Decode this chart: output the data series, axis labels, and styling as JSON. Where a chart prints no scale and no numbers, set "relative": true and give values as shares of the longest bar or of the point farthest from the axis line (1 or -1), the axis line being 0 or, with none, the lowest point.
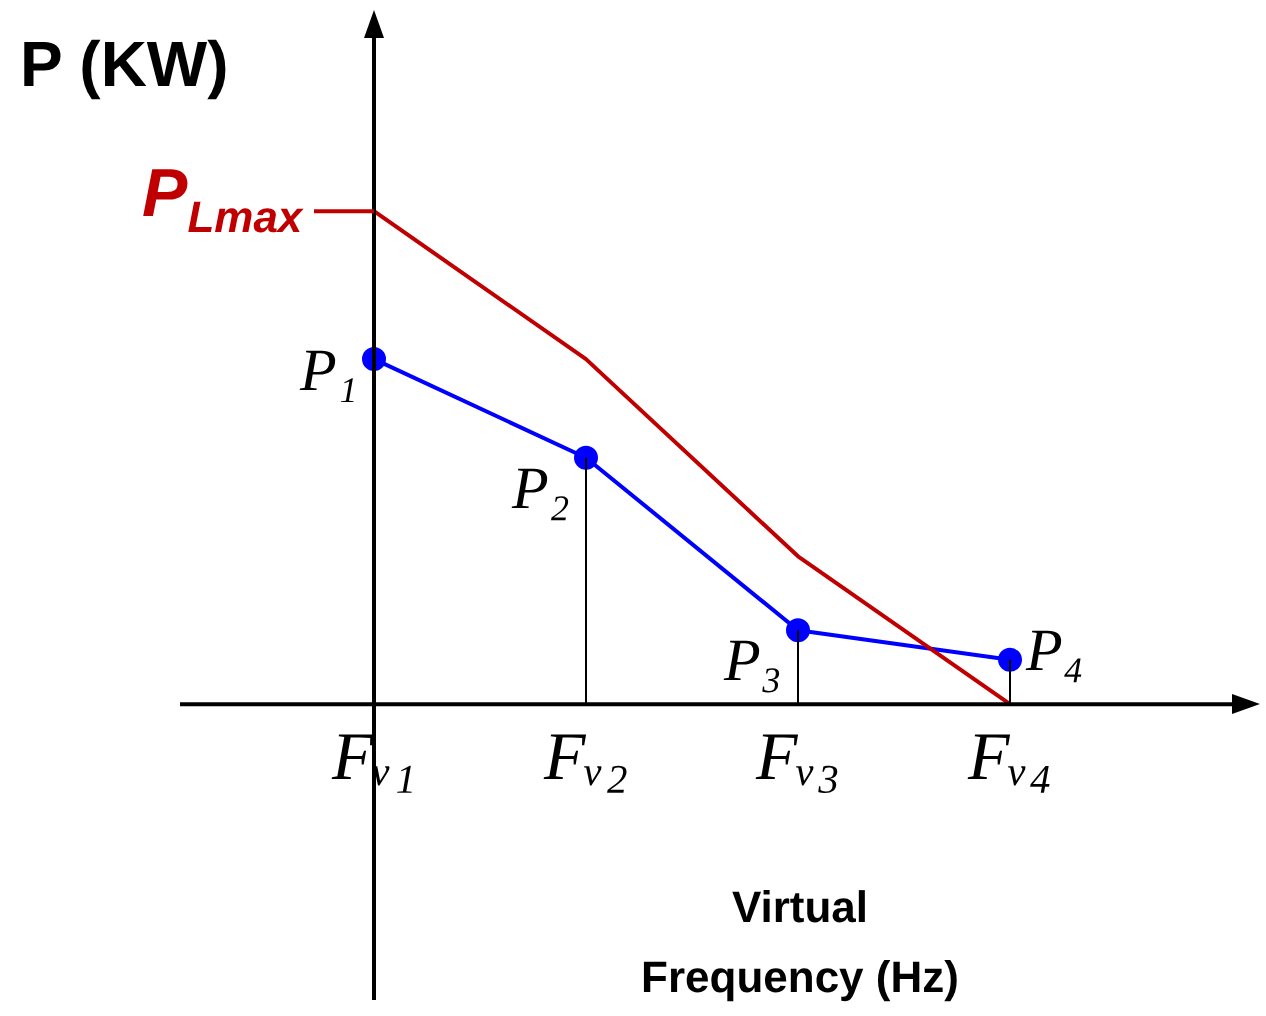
{
  "chart_data": {
    "type": "line",
    "relative": true,
    "ylabel": "P (KW)",
    "xlabel": "Virtual Frequency (Hz)",
    "categories": [
      "Fᵥ₁",
      "Fᵥ₂",
      "Fᵥ₃",
      "Fᵥ₄"
    ],
    "grid": "x",
    "legend": false,
    "marker": "circle",
    "annotations": [
      {
        "text": "P$_{Lmax}$",
        "x": "Fᵥ₁",
        "y": 1
      },
      {
        "text": "P₁",
        "x": "Fᵥ₁",
        "y": 0.7
      },
      {
        "text": "P₂",
        "x": "Fᵥ₂",
        "y": 0.5
      },
      {
        "text": "P₃",
        "x": "Fᵥ₃",
        "y": 0.15
      },
      {
        "text": "P₄",
        "x": "Fᵥ₄",
        "y": 0.09
      }
    ],
    "series": [
      {
        "color": "#c00000",
        "marker": "none",
        "values": [
          1,
          0.7,
          0.3,
          0
        ]
      },
      {
        "color": "#0000ff",
        "values": [
          0.7,
          0.5,
          0.15,
          0.09
        ]
      }
    ]
  }
}
